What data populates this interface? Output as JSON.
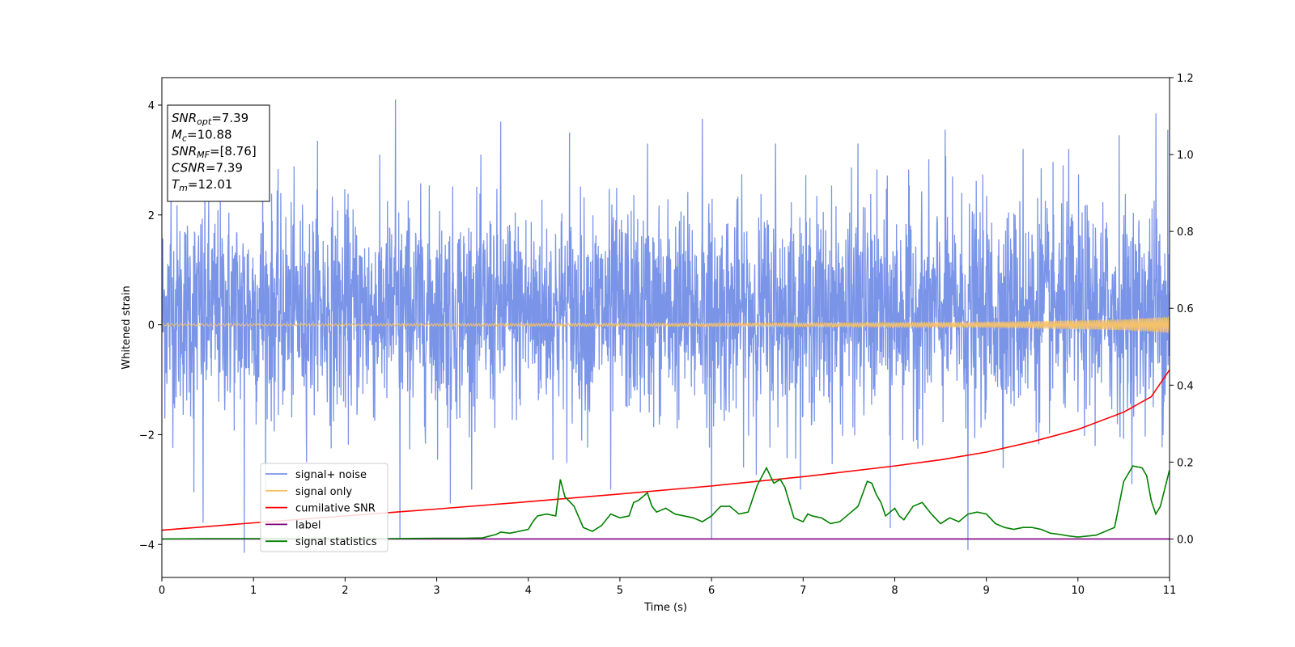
{
  "chart_data": {
    "type": "line",
    "xlabel": "Time (s)",
    "ylabel": "Whitened strain",
    "xlim": [
      0,
      11
    ],
    "ylim": [
      -4.6,
      4.5
    ],
    "ylim_right": [
      -0.1,
      1.2
    ],
    "x_ticks": [
      0,
      1,
      2,
      3,
      4,
      5,
      6,
      7,
      8,
      9,
      10,
      11
    ],
    "y_ticks": [
      -4,
      -2,
      0,
      2,
      4
    ],
    "y_ticks_right": [
      0.0,
      0.2,
      0.4,
      0.6,
      0.8,
      1.0,
      1.2
    ],
    "y_tick_labels_left": [
      "−4",
      "−2",
      "0",
      "2",
      "4"
    ],
    "y_tick_labels_right": [
      "0.0",
      "0.2",
      "0.4",
      "0.6",
      "0.8",
      "1.0",
      "1.2"
    ],
    "grid": false,
    "legend_position": "lower-left",
    "info_box": {
      "lines": [
        {
          "main": "SNR",
          "sub": "opt",
          "value": "=7.39"
        },
        {
          "main": "M",
          "sub": "c",
          "value": "=10.88"
        },
        {
          "main": "SNR",
          "sub": "MF",
          "value": "=[8.76]"
        },
        {
          "main": "CSNR",
          "sub": "",
          "value": "=7.39"
        },
        {
          "main": "T",
          "sub": "m",
          "value": "=12.01"
        }
      ]
    },
    "series": [
      {
        "name": "signal+ noise",
        "color": "#7a94e8",
        "axis": "left",
        "style": "noise",
        "amplitude_envelope": {
          "typical": [
            -2.1,
            2.6
          ],
          "extremes": [
            -4.15,
            4.1
          ]
        },
        "peaks": [
          [
            0.1,
            2.5
          ],
          [
            0.35,
            -3.05
          ],
          [
            0.45,
            -3.6
          ],
          [
            0.9,
            -4.15
          ],
          [
            1.1,
            2.9
          ],
          [
            1.7,
            3.35
          ],
          [
            2.55,
            4.1
          ],
          [
            2.6,
            -3.9
          ],
          [
            3.15,
            -3.25
          ],
          [
            3.7,
            3.7
          ],
          [
            4.45,
            3.5
          ],
          [
            4.9,
            -3.0
          ],
          [
            5.3,
            3.3
          ],
          [
            5.9,
            3.75
          ],
          [
            6.0,
            -3.9
          ],
          [
            6.7,
            3.3
          ],
          [
            7.6,
            3.3
          ],
          [
            7.95,
            -3.7
          ],
          [
            8.55,
            3.55
          ],
          [
            8.8,
            -4.1
          ],
          [
            9.4,
            3.2
          ],
          [
            9.6,
            2.85
          ],
          [
            9.9,
            3.2
          ],
          [
            10.45,
            3.45
          ],
          [
            10.85,
            3.85
          ],
          [
            10.98,
            3.55
          ]
        ]
      },
      {
        "name": "signal only",
        "color": "#f5c26b",
        "axis": "left",
        "style": "chirp",
        "x": [
          0,
          2,
          4,
          6,
          8,
          9,
          10,
          10.5,
          11
        ],
        "envelope": [
          0.02,
          0.02,
          0.025,
          0.03,
          0.04,
          0.05,
          0.08,
          0.1,
          0.15
        ]
      },
      {
        "name": "cumilative SNR",
        "color": "#ff0000",
        "axis": "right",
        "x": [
          0,
          1,
          2,
          3,
          4,
          5,
          6,
          7,
          8,
          8.5,
          9,
          9.5,
          10,
          10.5,
          10.8,
          11
        ],
        "values": [
          0.023,
          0.042,
          0.06,
          0.078,
          0.097,
          0.117,
          0.138,
          0.162,
          0.19,
          0.206,
          0.226,
          0.253,
          0.285,
          0.33,
          0.37,
          0.44
        ]
      },
      {
        "name": "label",
        "color": "#800080",
        "axis": "right",
        "x": [
          0,
          11
        ],
        "values": [
          0.0,
          0.0
        ]
      },
      {
        "name": "signal statistics",
        "color": "#008000",
        "axis": "right",
        "x": [
          0,
          0.5,
          1,
          1.5,
          2,
          2.5,
          3,
          3.3,
          3.5,
          3.65,
          3.7,
          3.8,
          4.0,
          4.05,
          4.1,
          4.2,
          4.3,
          4.35,
          4.4,
          4.5,
          4.6,
          4.7,
          4.8,
          4.9,
          5.0,
          5.1,
          5.15,
          5.2,
          5.3,
          5.35,
          5.4,
          5.5,
          5.6,
          5.7,
          5.8,
          5.9,
          6.0,
          6.1,
          6.2,
          6.3,
          6.4,
          6.5,
          6.6,
          6.68,
          6.75,
          6.8,
          6.9,
          7.0,
          7.05,
          7.1,
          7.2,
          7.3,
          7.4,
          7.5,
          7.6,
          7.7,
          7.75,
          7.8,
          7.85,
          7.9,
          8.0,
          8.05,
          8.1,
          8.2,
          8.3,
          8.4,
          8.5,
          8.6,
          8.7,
          8.8,
          8.9,
          9.0,
          9.1,
          9.2,
          9.3,
          9.4,
          9.5,
          9.6,
          9.7,
          9.8,
          9.9,
          10.0,
          10.2,
          10.4,
          10.5,
          10.55,
          10.6,
          10.7,
          10.75,
          10.8,
          10.85,
          10.9,
          11.0
        ],
        "values": [
          0.0,
          0.001,
          0.001,
          0.001,
          0.001,
          0.001,
          0.002,
          0.002,
          0.003,
          0.012,
          0.018,
          0.015,
          0.025,
          0.045,
          0.06,
          0.065,
          0.06,
          0.155,
          0.11,
          0.085,
          0.03,
          0.02,
          0.035,
          0.065,
          0.055,
          0.06,
          0.095,
          0.1,
          0.12,
          0.085,
          0.07,
          0.08,
          0.065,
          0.06,
          0.055,
          0.045,
          0.06,
          0.085,
          0.085,
          0.065,
          0.07,
          0.14,
          0.185,
          0.145,
          0.155,
          0.135,
          0.055,
          0.045,
          0.065,
          0.06,
          0.055,
          0.04,
          0.045,
          0.065,
          0.085,
          0.15,
          0.145,
          0.115,
          0.095,
          0.06,
          0.08,
          0.06,
          0.05,
          0.085,
          0.095,
          0.065,
          0.04,
          0.055,
          0.045,
          0.065,
          0.07,
          0.065,
          0.04,
          0.03,
          0.025,
          0.03,
          0.03,
          0.025,
          0.015,
          0.012,
          0.008,
          0.005,
          0.01,
          0.03,
          0.15,
          0.17,
          0.19,
          0.185,
          0.165,
          0.1,
          0.065,
          0.085,
          0.18
        ]
      }
    ]
  }
}
